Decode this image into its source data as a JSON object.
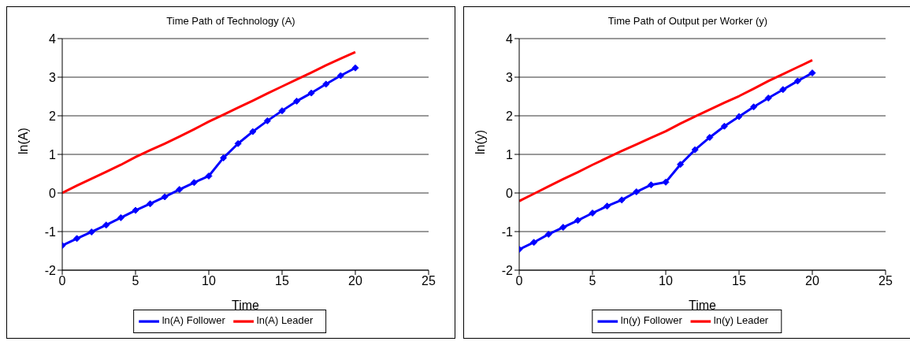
{
  "chart_data": [
    {
      "type": "line",
      "title": "Time Path of Technology (A)",
      "xlabel": "Time",
      "ylabel": "ln(A)",
      "x": [
        0,
        1,
        2,
        3,
        4,
        5,
        6,
        7,
        8,
        9,
        10,
        11,
        12,
        13,
        14,
        15,
        16,
        17,
        18,
        19,
        20
      ],
      "xlim": [
        0,
        25
      ],
      "xticks": [
        0,
        5,
        10,
        15,
        20,
        25
      ],
      "ylim": [
        -2,
        4
      ],
      "yticks": [
        -2,
        -1,
        0,
        1,
        2,
        3,
        4
      ],
      "grid": "y",
      "legend": "bottom",
      "line_style": "solid",
      "series": [
        {
          "name": "ln(A) Leader",
          "color": "#ff0000",
          "marker": "none",
          "values": [
            0,
            0.19,
            0.37,
            0.55,
            0.73,
            0.93,
            1.11,
            1.28,
            1.46,
            1.65,
            1.85,
            2.03,
            2.21,
            2.39,
            2.58,
            2.76,
            2.94,
            3.12,
            3.31,
            3.48,
            3.65
          ]
        },
        {
          "name": "ln(A) Follower",
          "color": "#0000ff",
          "marker": "diamond",
          "values": [
            -1.36,
            -1.18,
            -1.01,
            -0.83,
            -0.64,
            -0.45,
            -0.28,
            -0.1,
            0.09,
            0.27,
            0.44,
            0.91,
            1.28,
            1.59,
            1.87,
            2.13,
            2.38,
            2.59,
            2.82,
            3.04,
            3.24
          ]
        }
      ]
    },
    {
      "type": "line",
      "title": "Time Path of Output per Worker (y)",
      "xlabel": "Time",
      "ylabel": "ln(y)",
      "x": [
        0,
        1,
        2,
        3,
        4,
        5,
        6,
        7,
        8,
        9,
        10,
        11,
        12,
        13,
        14,
        15,
        16,
        17,
        18,
        19,
        20
      ],
      "xlim": [
        0,
        25
      ],
      "xticks": [
        0,
        5,
        10,
        15,
        20,
        25
      ],
      "ylim": [
        -2,
        4
      ],
      "yticks": [
        -2,
        -1,
        0,
        1,
        2,
        3,
        4
      ],
      "grid": "y",
      "legend": "bottom",
      "line_style": "solid",
      "series": [
        {
          "name": "ln(y) Leader",
          "color": "#ff0000",
          "marker": "none",
          "values": [
            -0.21,
            -0.02,
            0.17,
            0.36,
            0.54,
            0.73,
            0.91,
            1.09,
            1.26,
            1.43,
            1.6,
            1.8,
            1.98,
            2.16,
            2.34,
            2.51,
            2.7,
            2.9,
            3.08,
            3.26,
            3.44
          ]
        },
        {
          "name": "ln(y) Follower",
          "color": "#0000ff",
          "marker": "diamond",
          "values": [
            -1.46,
            -1.28,
            -1.07,
            -0.89,
            -0.71,
            -0.52,
            -0.34,
            -0.18,
            0.03,
            0.21,
            0.28,
            0.74,
            1.12,
            1.44,
            1.73,
            1.98,
            2.23,
            2.46,
            2.68,
            2.9,
            3.11
          ]
        }
      ]
    }
  ]
}
